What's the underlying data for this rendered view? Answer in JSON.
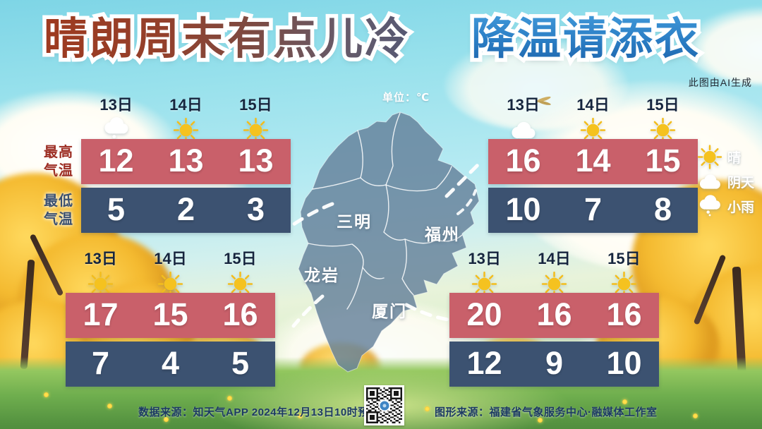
{
  "title": {
    "part1": "晴朗周末有点儿冷",
    "part2": "降温请添衣"
  },
  "ai_note": "此图由AI生成",
  "unit_label": "单位：℃",
  "axis_labels": {
    "high": [
      "最高",
      "气温"
    ],
    "low": [
      "最低",
      "气温"
    ]
  },
  "legend": [
    {
      "icon": "sunny",
      "label": "晴"
    },
    {
      "icon": "overcast",
      "label": "阴天"
    },
    {
      "icon": "light-rain",
      "label": "小雨"
    }
  ],
  "footer": {
    "left": "数据来源：知天气APP  2024年12月13日10时预报",
    "right": "图形来源：福建省气象服务中心·融媒体工作室"
  },
  "colors": {
    "high_bar": "#c9606a",
    "low_bar": "#3c5271",
    "title_warm_start": "#9e3a1f",
    "title_warm_end": "#565974",
    "title_cool": "#2a7cc3",
    "sun": "#f5c21f",
    "date_text": "#16253e"
  },
  "chart_data": {
    "type": "table",
    "title": "晴朗周末有点儿冷 降温请添衣",
    "unit": "℃",
    "dates": [
      "13日",
      "14日",
      "15日"
    ],
    "row_labels": [
      "最高气温",
      "最低气温"
    ],
    "cities": [
      {
        "name": "三明",
        "weather": [
          "小雨",
          "晴",
          "晴"
        ],
        "icons": [
          "light-rain",
          "sunny",
          "sunny"
        ],
        "high": [
          12,
          13,
          13
        ],
        "low": [
          5,
          2,
          3
        ]
      },
      {
        "name": "福州",
        "weather": [
          "阴天",
          "晴",
          "晴"
        ],
        "icons": [
          "overcast",
          "sunny",
          "sunny"
        ],
        "high": [
          16,
          14,
          15
        ],
        "low": [
          10,
          7,
          8
        ]
      },
      {
        "name": "龙岩",
        "weather": [
          "晴",
          "晴",
          "晴"
        ],
        "icons": [
          "sunny",
          "sunny",
          "sunny"
        ],
        "high": [
          17,
          15,
          16
        ],
        "low": [
          7,
          4,
          5
        ]
      },
      {
        "name": "厦门",
        "weather": [
          "晴",
          "晴",
          "晴"
        ],
        "icons": [
          "sunny",
          "sunny",
          "sunny"
        ],
        "high": [
          20,
          16,
          16
        ],
        "low": [
          12,
          9,
          10
        ]
      }
    ]
  }
}
